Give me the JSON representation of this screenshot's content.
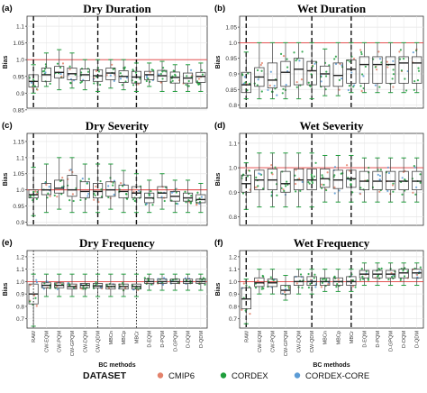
{
  "colors": {
    "CMIP6": "#e3826b",
    "CORDEX": "#1f9e3c",
    "CORDEX-CORE": "#5b9bd5",
    "refline": "#e23b3b",
    "panel_bg": "#ffffff",
    "grid": "#e6e6e6",
    "box": "#444444"
  },
  "legend": {
    "title": "DATASET",
    "items": [
      "CMIP6",
      "CORDEX",
      "CORDEX-CORE"
    ]
  },
  "chart_data": [
    {
      "type": "box",
      "panel": "(a)",
      "title": "Dry Duration",
      "ylabel": "Bias",
      "yticks": [
        0.85,
        0.9,
        0.95,
        1.0,
        1.05,
        1.1
      ],
      "ylim": [
        0.855,
        1.13
      ],
      "reference_line": 1.0,
      "separators": [
        0.5,
        5.5,
        8.5
      ],
      "separator_style": "dashed",
      "categories": [
        "RAW",
        "CW-EQM",
        "CW-PQM",
        "CW-GPQM",
        "CW-DQM",
        "CW-QDM",
        "MBCn",
        "MBCp",
        "MBCr",
        "D-EQM",
        "D-PQM",
        "D-GPQM",
        "D-DQM",
        "D-QDM"
      ],
      "series": [
        {
          "category": "RAW",
          "low": 0.9,
          "q1": 0.918,
          "median": 0.935,
          "q3": 0.955,
          "high": 0.985
        },
        {
          "category": "CW-EQM",
          "low": 0.92,
          "q1": 0.935,
          "median": 0.955,
          "q3": 0.975,
          "high": 1.02
        },
        {
          "category": "CW-PQM",
          "low": 0.91,
          "q1": 0.945,
          "median": 0.962,
          "q3": 0.98,
          "high": 1.03
        },
        {
          "category": "CW-GPQM",
          "low": 0.915,
          "q1": 0.94,
          "median": 0.958,
          "q3": 0.975,
          "high": 1.02
        },
        {
          "category": "CW-DQM",
          "low": 0.91,
          "q1": 0.937,
          "median": 0.955,
          "q3": 0.972,
          "high": 1.0
        },
        {
          "category": "CW-QDM",
          "low": 0.905,
          "q1": 0.935,
          "median": 0.952,
          "q3": 0.97,
          "high": 1.0
        },
        {
          "category": "MBCn",
          "low": 0.915,
          "q1": 0.94,
          "median": 0.96,
          "q3": 0.975,
          "high": 1.0
        },
        {
          "category": "MBCp",
          "low": 0.91,
          "q1": 0.932,
          "median": 0.95,
          "q3": 0.967,
          "high": 1.0
        },
        {
          "category": "MBCr",
          "low": 0.905,
          "q1": 0.93,
          "median": 0.948,
          "q3": 0.965,
          "high": 0.99
        },
        {
          "category": "D-EQM",
          "low": 0.92,
          "q1": 0.94,
          "median": 0.955,
          "q3": 0.965,
          "high": 0.99
        },
        {
          "category": "D-PQM",
          "low": 0.905,
          "q1": 0.935,
          "median": 0.952,
          "q3": 0.968,
          "high": 0.995
        },
        {
          "category": "D-GPQM",
          "low": 0.905,
          "q1": 0.93,
          "median": 0.947,
          "q3": 0.963,
          "high": 0.985
        },
        {
          "category": "D-DQM",
          "low": 0.905,
          "q1": 0.93,
          "median": 0.945,
          "q3": 0.96,
          "high": 0.985
        },
        {
          "category": "D-QDM",
          "low": 0.905,
          "q1": 0.932,
          "median": 0.95,
          "q3": 0.962,
          "high": 0.99
        }
      ]
    },
    {
      "type": "box",
      "panel": "(b)",
      "title": "Wet Duration",
      "ylabel": "Bias",
      "yticks": [
        0.8,
        0.85,
        0.9,
        0.95,
        1.0,
        1.05
      ],
      "ylim": [
        0.79,
        1.085
      ],
      "reference_line": 1.0,
      "separators": [
        0.5,
        5.5,
        8.5
      ],
      "separator_style": "dashed",
      "categories": [
        "RAW",
        "CW-EQM",
        "CW-PQM",
        "CW-GPQM",
        "CW-DQM",
        "CW-QDM",
        "MBCn",
        "MBCp",
        "MBCr",
        "D-EQM",
        "D-PQM",
        "D-GPQM",
        "D-DQM",
        "D-QDM"
      ],
      "series": [
        {
          "category": "RAW",
          "low": 0.82,
          "q1": 0.84,
          "median": 0.865,
          "q3": 0.905,
          "high": 0.97
        },
        {
          "category": "CW-EQM",
          "low": 0.82,
          "q1": 0.86,
          "median": 0.89,
          "q3": 0.92,
          "high": 1.0
        },
        {
          "category": "CW-PQM",
          "low": 0.82,
          "q1": 0.855,
          "median": 0.88,
          "q3": 0.935,
          "high": 1.0
        },
        {
          "category": "CW-GPQM",
          "low": 0.82,
          "q1": 0.86,
          "median": 0.905,
          "q3": 0.94,
          "high": 1.0
        },
        {
          "category": "CW-DQM",
          "low": 0.82,
          "q1": 0.865,
          "median": 0.915,
          "q3": 0.95,
          "high": 1.0
        },
        {
          "category": "CW-QDM",
          "low": 0.82,
          "q1": 0.865,
          "median": 0.91,
          "q3": 0.94,
          "high": 1.0
        },
        {
          "category": "MBCn",
          "low": 0.83,
          "q1": 0.86,
          "median": 0.9,
          "q3": 0.925,
          "high": 0.98
        },
        {
          "category": "MBCp",
          "low": 0.83,
          "q1": 0.86,
          "median": 0.895,
          "q3": 0.935,
          "high": 1.0
        },
        {
          "category": "MBCr",
          "low": 0.84,
          "q1": 0.87,
          "median": 0.915,
          "q3": 0.945,
          "high": 1.0
        },
        {
          "category": "D-EQM",
          "low": 0.84,
          "q1": 0.87,
          "median": 0.93,
          "q3": 0.955,
          "high": 1.0
        },
        {
          "category": "D-PQM",
          "low": 0.84,
          "q1": 0.87,
          "median": 0.93,
          "q3": 0.955,
          "high": 1.0
        },
        {
          "category": "D-GPQM",
          "low": 0.84,
          "q1": 0.87,
          "median": 0.93,
          "q3": 0.955,
          "high": 1.0
        },
        {
          "category": "D-DQM",
          "low": 0.84,
          "q1": 0.87,
          "median": 0.935,
          "q3": 0.955,
          "high": 1.0
        },
        {
          "category": "D-QDM",
          "low": 0.84,
          "q1": 0.87,
          "median": 0.935,
          "q3": 0.955,
          "high": 1.0
        }
      ]
    },
    {
      "type": "box",
      "panel": "(c)",
      "title": "Dry Severity",
      "ylabel": "Bias",
      "yticks": [
        0.9,
        0.95,
        1.0,
        1.05,
        1.1,
        1.15
      ],
      "ylim": [
        0.89,
        1.175
      ],
      "reference_line": 1.0,
      "separators": [
        0.5,
        5.5,
        8.5
      ],
      "separator_style": "dashed",
      "categories": [
        "RAW",
        "CW-EQM",
        "CW-PQM",
        "CW-GPQM",
        "CW-DQM",
        "CW-QDM",
        "MBCn",
        "MBCp",
        "MBCr",
        "D-EQM",
        "D-PQM",
        "D-GPQM",
        "D-DQM",
        "D-QDM"
      ],
      "series": [
        {
          "category": "RAW",
          "low": 0.92,
          "q1": 0.975,
          "median": 0.985,
          "q3": 1.0,
          "high": 1.07
        },
        {
          "category": "CW-EQM",
          "low": 0.93,
          "q1": 0.985,
          "median": 1.0,
          "q3": 1.02,
          "high": 1.08
        },
        {
          "category": "CW-PQM",
          "low": 0.94,
          "q1": 0.99,
          "median": 1.005,
          "q3": 1.03,
          "high": 1.1
        },
        {
          "category": "CW-GPQM",
          "low": 0.93,
          "q1": 0.98,
          "median": 1.0,
          "q3": 1.045,
          "high": 1.1
        },
        {
          "category": "CW-DQM",
          "low": 0.93,
          "q1": 0.975,
          "median": 0.995,
          "q3": 1.025,
          "high": 1.08
        },
        {
          "category": "CW-QDM",
          "low": 0.93,
          "q1": 0.975,
          "median": 0.995,
          "q3": 1.02,
          "high": 1.08
        },
        {
          "category": "MBCn",
          "low": 0.94,
          "q1": 0.98,
          "median": 1.0,
          "q3": 1.025,
          "high": 1.08
        },
        {
          "category": "MBCp",
          "low": 0.93,
          "q1": 0.975,
          "median": 0.995,
          "q3": 1.015,
          "high": 1.06
        },
        {
          "category": "MBCr",
          "low": 0.93,
          "q1": 0.975,
          "median": 0.99,
          "q3": 1.01,
          "high": 1.05
        },
        {
          "category": "D-EQM",
          "low": 0.93,
          "q1": 0.96,
          "median": 0.975,
          "q3": 0.99,
          "high": 1.03
        },
        {
          "category": "D-PQM",
          "low": 0.94,
          "q1": 0.975,
          "median": 0.99,
          "q3": 1.01,
          "high": 1.05
        },
        {
          "category": "D-GPQM",
          "low": 0.93,
          "q1": 0.965,
          "median": 0.98,
          "q3": 0.995,
          "high": 1.03
        },
        {
          "category": "D-DQM",
          "low": 0.93,
          "q1": 0.965,
          "median": 0.975,
          "q3": 0.99,
          "high": 1.03
        },
        {
          "category": "D-QDM",
          "low": 0.93,
          "q1": 0.96,
          "median": 0.97,
          "q3": 0.985,
          "high": 1.02
        }
      ]
    },
    {
      "type": "box",
      "panel": "(d)",
      "title": "Wet Severity",
      "ylabel": "Bias",
      "yticks": [
        0.8,
        0.9,
        1.0,
        1.1
      ],
      "ylim": [
        0.765,
        1.14
      ],
      "reference_line": 1.0,
      "separators": [
        0.5,
        5.5,
        8.5
      ],
      "separator_style": "dashed",
      "categories": [
        "RAW",
        "CW-EQM",
        "CW-PQM",
        "CW-GPQM",
        "CW-DQM",
        "CW-QDM",
        "MBCn",
        "MBCp",
        "MBCr",
        "D-EQM",
        "D-PQM",
        "D-GPQM",
        "D-DQM",
        "D-QDM"
      ],
      "series": [
        {
          "category": "RAW",
          "low": 0.83,
          "q1": 0.9,
          "median": 0.935,
          "q3": 0.97,
          "high": 1.02
        },
        {
          "category": "CW-EQM",
          "low": 0.84,
          "q1": 0.91,
          "median": 0.95,
          "q3": 0.99,
          "high": 1.06
        },
        {
          "category": "CW-PQM",
          "low": 0.84,
          "q1": 0.91,
          "median": 0.95,
          "q3": 0.995,
          "high": 1.06
        },
        {
          "category": "CW-GPQM",
          "low": 0.84,
          "q1": 0.9,
          "median": 0.935,
          "q3": 0.985,
          "high": 1.06
        },
        {
          "category": "CW-DQM",
          "low": 0.84,
          "q1": 0.91,
          "median": 0.95,
          "q3": 0.995,
          "high": 1.06
        },
        {
          "category": "CW-QDM",
          "low": 0.84,
          "q1": 0.91,
          "median": 0.95,
          "q3": 0.995,
          "high": 1.06
        },
        {
          "category": "MBCn",
          "low": 0.86,
          "q1": 0.92,
          "median": 0.955,
          "q3": 0.995,
          "high": 1.05
        },
        {
          "category": "MBCp",
          "low": 0.86,
          "q1": 0.915,
          "median": 0.95,
          "q3": 0.99,
          "high": 1.05
        },
        {
          "category": "MBCr",
          "low": 0.86,
          "q1": 0.92,
          "median": 0.955,
          "q3": 0.99,
          "high": 1.05
        },
        {
          "category": "D-EQM",
          "low": 0.86,
          "q1": 0.91,
          "median": 0.945,
          "q3": 0.985,
          "high": 1.04
        },
        {
          "category": "D-PQM",
          "low": 0.86,
          "q1": 0.91,
          "median": 0.945,
          "q3": 0.985,
          "high": 1.04
        },
        {
          "category": "D-GPQM",
          "low": 0.86,
          "q1": 0.91,
          "median": 0.945,
          "q3": 0.985,
          "high": 1.04
        },
        {
          "category": "D-DQM",
          "low": 0.86,
          "q1": 0.91,
          "median": 0.945,
          "q3": 0.985,
          "high": 1.04
        },
        {
          "category": "D-QDM",
          "low": 0.86,
          "q1": 0.91,
          "median": 0.945,
          "q3": 0.985,
          "high": 1.04
        }
      ]
    },
    {
      "type": "box",
      "panel": "(e)",
      "title": "Dry Frequency",
      "ylabel": "Bias",
      "xlabel": "BC methods",
      "yticks": [
        0.7,
        0.8,
        0.9,
        1.0,
        1.1,
        1.2
      ],
      "ylim": [
        0.625,
        1.25
      ],
      "reference_line": 1.0,
      "separators": [
        0.5,
        5.5,
        8.5
      ],
      "separator_style": "dotted",
      "categories": [
        "RAW",
        "CW-EQM",
        "CW-PQM",
        "CW-GPQM",
        "CW-DQM",
        "CW-QDM",
        "MBCn",
        "MBCp",
        "MBCr",
        "D-EQM",
        "D-PQM",
        "D-GPQM",
        "D-DQM",
        "D-QDM"
      ],
      "series": [
        {
          "category": "RAW",
          "low": 0.64,
          "q1": 0.82,
          "median": 0.9,
          "q3": 0.98,
          "high": 1.06
        },
        {
          "category": "CW-EQM",
          "low": 0.88,
          "q1": 0.95,
          "median": 0.97,
          "q3": 0.99,
          "high": 1.06
        },
        {
          "category": "CW-PQM",
          "low": 0.88,
          "q1": 0.95,
          "median": 0.97,
          "q3": 0.99,
          "high": 1.06
        },
        {
          "category": "CW-GPQM",
          "low": 0.88,
          "q1": 0.94,
          "median": 0.96,
          "q3": 0.98,
          "high": 1.06
        },
        {
          "category": "CW-DQM",
          "low": 0.88,
          "q1": 0.95,
          "median": 0.97,
          "q3": 0.985,
          "high": 1.06
        },
        {
          "category": "CW-QDM",
          "low": 0.88,
          "q1": 0.95,
          "median": 0.965,
          "q3": 0.985,
          "high": 1.06
        },
        {
          "category": "MBCn",
          "low": 0.88,
          "q1": 0.94,
          "median": 0.96,
          "q3": 0.98,
          "high": 1.06
        },
        {
          "category": "MBCp",
          "low": 0.88,
          "q1": 0.94,
          "median": 0.96,
          "q3": 0.98,
          "high": 1.06
        },
        {
          "category": "MBCr",
          "low": 0.88,
          "q1": 0.94,
          "median": 0.96,
          "q3": 0.98,
          "high": 1.06
        },
        {
          "category": "D-EQM",
          "low": 0.93,
          "q1": 0.985,
          "median": 1.0,
          "q3": 1.02,
          "high": 1.06
        },
        {
          "category": "D-PQM",
          "low": 0.93,
          "q1": 0.985,
          "median": 1.0,
          "q3": 1.02,
          "high": 1.06
        },
        {
          "category": "D-GPQM",
          "low": 0.93,
          "q1": 0.985,
          "median": 1.0,
          "q3": 1.02,
          "high": 1.06
        },
        {
          "category": "D-DQM",
          "low": 0.93,
          "q1": 0.985,
          "median": 1.0,
          "q3": 1.02,
          "high": 1.06
        },
        {
          "category": "D-QDM",
          "low": 0.93,
          "q1": 0.985,
          "median": 1.0,
          "q3": 1.02,
          "high": 1.06
        }
      ]
    },
    {
      "type": "box",
      "panel": "(f)",
      "title": "Wet Frequency",
      "ylabel": "Bias",
      "xlabel": "BC methods",
      "yticks": [
        0.7,
        0.8,
        0.9,
        1.0,
        1.1,
        1.2
      ],
      "ylim": [
        0.625,
        1.25
      ],
      "reference_line": 1.0,
      "separators": [
        0.5,
        5.5,
        8.5
      ],
      "separator_style": "dashed",
      "categories": [
        "RAW",
        "CW-EQM",
        "CW-PQM",
        "CW-GPQM",
        "CW-DQM",
        "CW-QDM",
        "MBCn",
        "MBCp",
        "MBCr",
        "D-EQM",
        "D-PQM",
        "D-GPQM",
        "D-DQM",
        "D-QDM"
      ],
      "series": [
        {
          "category": "RAW",
          "low": 0.66,
          "q1": 0.78,
          "median": 0.86,
          "q3": 0.95,
          "high": 1.02
        },
        {
          "category": "CW-EQM",
          "low": 0.9,
          "q1": 0.96,
          "median": 0.99,
          "q3": 1.03,
          "high": 1.1
        },
        {
          "category": "CW-PQM",
          "low": 0.9,
          "q1": 0.96,
          "median": 0.99,
          "q3": 1.02,
          "high": 1.1
        },
        {
          "category": "CW-GPQM",
          "low": 0.85,
          "q1": 0.9,
          "median": 0.93,
          "q3": 0.97,
          "high": 1.05
        },
        {
          "category": "CW-DQM",
          "low": 0.9,
          "q1": 0.97,
          "median": 1.0,
          "q3": 1.04,
          "high": 1.1
        },
        {
          "category": "CW-QDM",
          "low": 0.9,
          "q1": 0.97,
          "median": 1.0,
          "q3": 1.04,
          "high": 1.1
        },
        {
          "category": "MBCn",
          "low": 0.92,
          "q1": 0.97,
          "median": 1.0,
          "q3": 1.03,
          "high": 1.1
        },
        {
          "category": "MBCp",
          "low": 0.92,
          "q1": 0.97,
          "median": 1.0,
          "q3": 1.03,
          "high": 1.1
        },
        {
          "category": "MBCr",
          "low": 0.92,
          "q1": 0.97,
          "median": 1.0,
          "q3": 1.04,
          "high": 1.1
        },
        {
          "category": "D-EQM",
          "low": 0.97,
          "q1": 1.03,
          "median": 1.06,
          "q3": 1.09,
          "high": 1.15
        },
        {
          "category": "D-PQM",
          "low": 0.97,
          "q1": 1.03,
          "median": 1.06,
          "q3": 1.09,
          "high": 1.15
        },
        {
          "category": "D-GPQM",
          "low": 0.97,
          "q1": 1.03,
          "median": 1.06,
          "q3": 1.09,
          "high": 1.15
        },
        {
          "category": "D-DQM",
          "low": 0.97,
          "q1": 1.03,
          "median": 1.07,
          "q3": 1.1,
          "high": 1.15
        },
        {
          "category": "D-QDM",
          "low": 0.97,
          "q1": 1.03,
          "median": 1.07,
          "q3": 1.1,
          "high": 1.15
        }
      ]
    }
  ]
}
